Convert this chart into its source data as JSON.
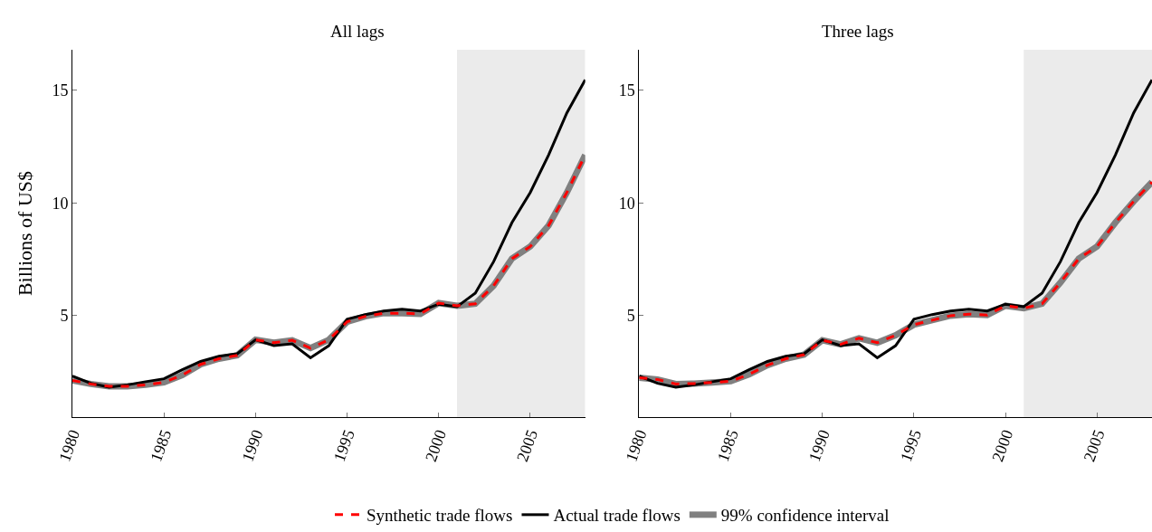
{
  "chart_data": [
    {
      "type": "line",
      "title": "All lags",
      "ylabel": "Billions of US$",
      "x": [
        1980,
        1981,
        1982,
        1983,
        1984,
        1985,
        1986,
        1987,
        1988,
        1989,
        1990,
        1991,
        1992,
        1993,
        1994,
        1995,
        1996,
        1997,
        1998,
        1999,
        2000,
        2001,
        2002,
        2003,
        2004,
        2005,
        2006,
        2007,
        2008
      ],
      "series": [
        {
          "name": "99% confidence interval",
          "color": "#808080",
          "line_style": "solid",
          "values": [
            2.13,
            1.97,
            1.87,
            1.87,
            1.93,
            2.04,
            2.36,
            2.84,
            3.09,
            3.24,
            3.93,
            3.8,
            3.91,
            3.56,
            3.93,
            4.73,
            4.97,
            5.11,
            5.11,
            5.08,
            5.56,
            5.44,
            5.53,
            6.33,
            7.53,
            8.07,
            9.0,
            10.47,
            12.13
          ]
        },
        {
          "name": "Actual trade flows",
          "color": "#000000",
          "line_style": "solid",
          "values": [
            2.32,
            2.0,
            1.83,
            1.93,
            2.07,
            2.2,
            2.6,
            2.97,
            3.2,
            3.31,
            3.93,
            3.67,
            3.75,
            3.13,
            3.67,
            4.84,
            5.05,
            5.21,
            5.29,
            5.21,
            5.51,
            5.4,
            6.0,
            7.4,
            9.13,
            10.47,
            12.13,
            14.0,
            15.47
          ]
        },
        {
          "name": "Synthetic trade flows",
          "color": "#ff0000",
          "line_style": "dashed",
          "values": [
            2.13,
            1.97,
            1.87,
            1.87,
            1.93,
            2.04,
            2.36,
            2.84,
            3.09,
            3.24,
            3.93,
            3.8,
            3.91,
            3.56,
            3.93,
            4.73,
            4.97,
            5.11,
            5.11,
            5.08,
            5.56,
            5.44,
            5.53,
            6.33,
            7.53,
            8.07,
            9.0,
            10.47,
            12.13
          ]
        }
      ],
      "bands": [
        {
          "axis": "x",
          "from": 2001,
          "to": 2008,
          "color": "#ebebeb"
        }
      ],
      "xlim": [
        1980,
        2008
      ],
      "xticks": [
        1980,
        1985,
        1990,
        1995,
        2000,
        2005
      ],
      "ylim": [
        0.5,
        16.8
      ],
      "yticks": [
        5,
        10,
        15
      ],
      "grid": false,
      "legend": "bottom",
      "marker": "none"
    },
    {
      "type": "line",
      "title": "Three lags",
      "x": [
        1980,
        1981,
        1982,
        1983,
        1984,
        1985,
        1986,
        1987,
        1988,
        1989,
        1990,
        1991,
        1992,
        1993,
        1994,
        1995,
        1996,
        1997,
        1998,
        1999,
        2000,
        2001,
        2002,
        2003,
        2004,
        2005,
        2006,
        2007,
        2008
      ],
      "series": [
        {
          "name": "99% confidence interval",
          "color": "#808080",
          "line_style": "solid",
          "values": [
            2.25,
            2.17,
            1.97,
            1.99,
            2.04,
            2.09,
            2.4,
            2.8,
            3.09,
            3.27,
            3.91,
            3.73,
            4.0,
            3.8,
            4.13,
            4.6,
            4.8,
            5.0,
            5.07,
            5.03,
            5.44,
            5.33,
            5.53,
            6.47,
            7.53,
            8.07,
            9.13,
            10.07,
            10.93
          ]
        },
        {
          "name": "Actual trade flows",
          "color": "#000000",
          "line_style": "solid",
          "values": [
            2.32,
            2.0,
            1.83,
            1.93,
            2.07,
            2.2,
            2.6,
            2.97,
            3.2,
            3.31,
            3.93,
            3.67,
            3.75,
            3.13,
            3.67,
            4.84,
            5.05,
            5.21,
            5.29,
            5.21,
            5.51,
            5.4,
            6.0,
            7.4,
            9.13,
            10.47,
            12.13,
            14.0,
            15.47
          ]
        },
        {
          "name": "Synthetic trade flows",
          "color": "#ff0000",
          "line_style": "dashed",
          "values": [
            2.25,
            2.17,
            1.97,
            1.99,
            2.04,
            2.09,
            2.4,
            2.8,
            3.09,
            3.27,
            3.91,
            3.73,
            4.0,
            3.8,
            4.13,
            4.6,
            4.8,
            5.0,
            5.07,
            5.03,
            5.44,
            5.33,
            5.53,
            6.47,
            7.53,
            8.07,
            9.13,
            10.07,
            10.93
          ]
        }
      ],
      "bands": [
        {
          "axis": "x",
          "from": 2001,
          "to": 2008,
          "color": "#ebebeb"
        }
      ],
      "xlim": [
        1980,
        2008
      ],
      "xticks": [
        1980,
        1985,
        1990,
        1995,
        2000,
        2005
      ],
      "ylim": [
        0.5,
        16.8
      ],
      "yticks": [
        5,
        10,
        15
      ],
      "grid": false,
      "legend": "bottom",
      "marker": "none"
    }
  ]
}
